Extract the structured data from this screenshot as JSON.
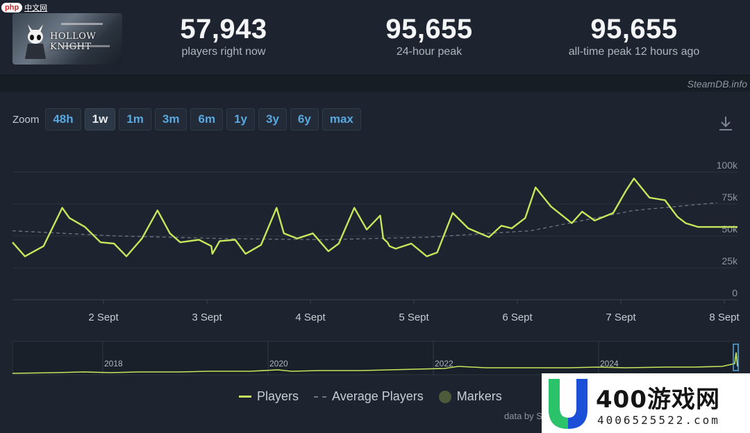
{
  "watermark_top": {
    "badge": "php",
    "text": "中文网"
  },
  "game": {
    "logo_text": "HOLLOW KNIGHT"
  },
  "stats": [
    {
      "value": "57,943",
      "label": "players right now"
    },
    {
      "value": "95,655",
      "label": "24-hour peak"
    },
    {
      "value": "95,655",
      "label": "all-time peak 12 hours ago"
    }
  ],
  "credit_top": "SteamDB.info",
  "zoom": {
    "label": "Zoom",
    "options": [
      "48h",
      "1w",
      "1m",
      "3m",
      "6m",
      "1y",
      "3y",
      "6y",
      "max"
    ],
    "active": "1w"
  },
  "download_icon": "download-icon",
  "chart_data": {
    "type": "line",
    "title": "",
    "xlabel": "",
    "ylabel": "",
    "ylim": [
      0,
      100000
    ],
    "y_ticks": [
      "100k",
      "75k",
      "50k",
      "25k",
      "0"
    ],
    "x_ticks": [
      "2 Sept",
      "3 Sept",
      "4 Sept",
      "5 Sept",
      "6 Sept",
      "7 Sept",
      "8 Sept"
    ],
    "grid": true,
    "legend_position": "bottom",
    "series": [
      {
        "name": "Players",
        "color": "#c6e65b",
        "x": [
          0.0,
          0.12,
          0.3,
          0.48,
          0.55,
          0.7,
          0.85,
          0.98,
          1.1,
          1.25,
          1.4,
          1.52,
          1.62,
          1.8,
          1.92,
          1.93,
          2.0,
          2.15,
          2.25,
          2.4,
          2.55,
          2.62,
          2.75,
          2.9,
          3.05,
          3.15,
          3.3,
          3.42,
          3.55,
          3.58,
          3.62,
          3.64,
          3.7,
          3.85,
          4.0,
          4.1,
          4.25,
          4.4,
          4.6,
          4.72,
          4.82,
          4.95,
          5.05,
          5.2,
          5.4,
          5.5,
          5.62,
          5.8,
          5.92,
          6.0,
          6.15,
          6.3,
          6.42,
          6.5,
          6.62,
          6.72,
          6.85,
          7.0,
          7.15,
          7.25,
          7.4,
          7.55,
          7.62,
          7.72,
          7.85,
          7.95,
          8.08
        ],
        "y": [
          45000,
          34000,
          42000,
          72000,
          64000,
          57000,
          45000,
          44000,
          34000,
          48000,
          70000,
          52000,
          45000,
          47000,
          42000,
          36000,
          46000,
          47000,
          36000,
          43000,
          72000,
          52000,
          48000,
          52000,
          38000,
          44000,
          72000,
          55000,
          66000,
          48000,
          45000,
          42000,
          40000,
          44000,
          34000,
          37000,
          68000,
          56000,
          49000,
          58000,
          56000,
          64000,
          88000,
          73000,
          60000,
          69000,
          62000,
          68000,
          85000,
          95000,
          80000,
          78000,
          65000,
          60000,
          57000,
          57000,
          57000,
          57000,
          57000,
          57000,
          57000,
          57000,
          57000,
          57000,
          57000,
          57000,
          57000
        ]
      },
      {
        "name": "Average Players",
        "color": "#6d7682",
        "x": [
          0.0,
          1.0,
          2.0,
          3.0,
          4.0,
          5.0,
          6.0,
          6.8,
          7.2
        ],
        "y": [
          54000,
          50000,
          48000,
          47000,
          49000,
          54000,
          70000,
          76000,
          75000
        ]
      }
    ],
    "navigator": {
      "x_ticks": [
        "2018",
        "2020",
        "2022",
        "2024"
      ]
    }
  },
  "legend": [
    {
      "name": "Players",
      "swatch": "line"
    },
    {
      "name": "Average Players",
      "swatch": "dash"
    },
    {
      "name": "Markers",
      "swatch": "dot"
    }
  ],
  "credit_bottom": "data by S",
  "watermark_bottom": {
    "brand": "400游戏网",
    "phone": "4006525522.com"
  }
}
